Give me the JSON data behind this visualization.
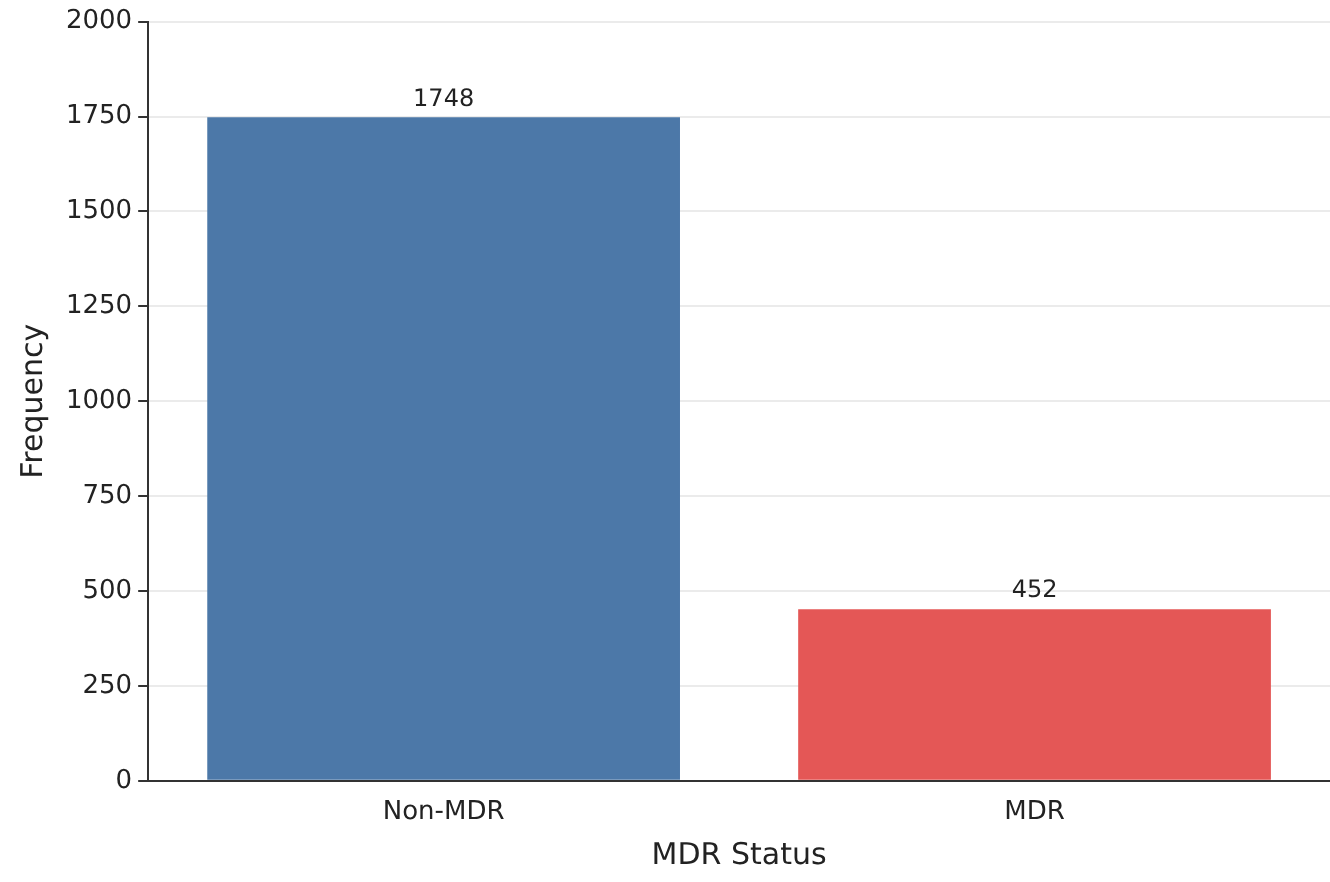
{
  "chart_data": {
    "type": "bar",
    "xlabel": "MDR Status",
    "ylabel": "Frequency",
    "categories": [
      "Non-MDR",
      "MDR"
    ],
    "values": [
      1748,
      452
    ],
    "colors": [
      "#4c78a8",
      "#e45756"
    ],
    "ylim": [
      0,
      2000
    ],
    "yticks": [
      0,
      250,
      500,
      750,
      1000,
      1250,
      1500,
      1750,
      2000
    ],
    "grid": "y",
    "data_labels": true
  }
}
